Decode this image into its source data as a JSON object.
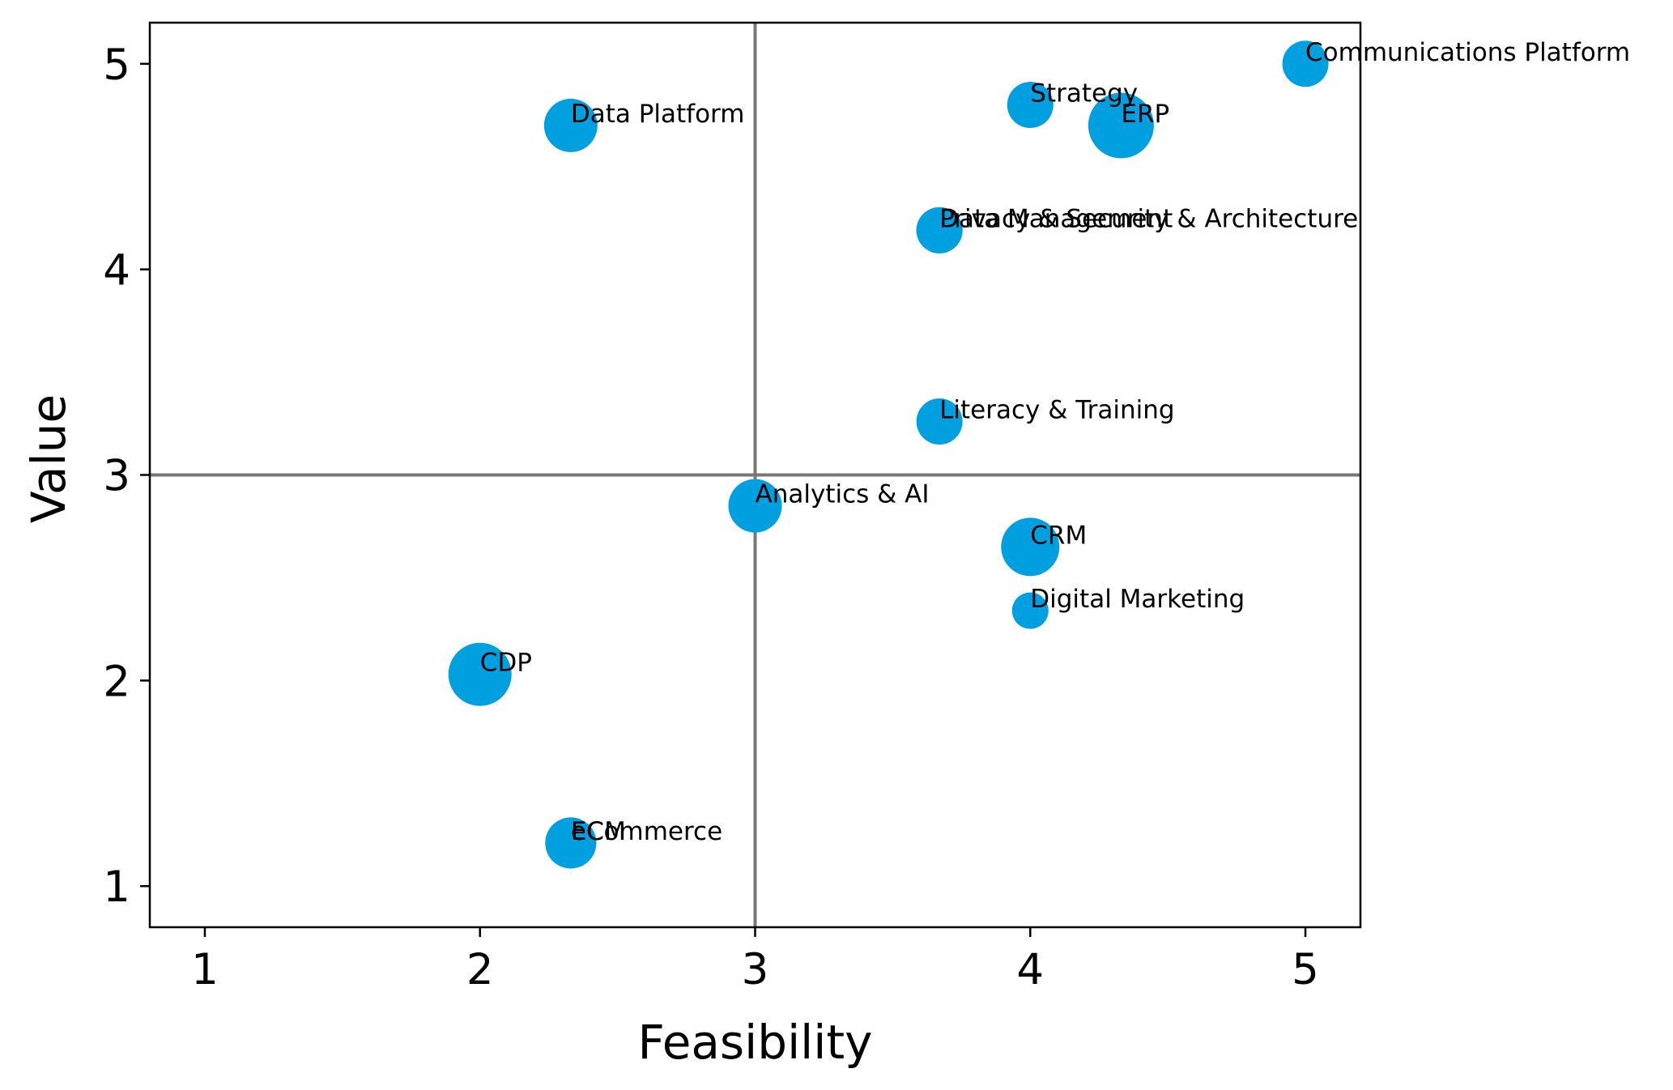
{
  "chart_data": {
    "type": "scatter",
    "xlabel": "Feasibility",
    "ylabel": "Value",
    "xlim": [
      0.8,
      5.2
    ],
    "ylim": [
      0.8,
      5.2
    ],
    "xticks": [
      1,
      2,
      3,
      4,
      5
    ],
    "yticks": [
      1,
      2,
      3,
      4,
      5
    ],
    "quadrant_lines": {
      "x": 3,
      "y": 3
    },
    "grid": false,
    "marker_color": "#00a0e0",
    "quadrant_line_color": "#777777",
    "points": [
      {
        "label": "Communications Platform",
        "x": 5.0,
        "y": 5.0,
        "size": 0.95
      },
      {
        "label": "Strategy",
        "x": 4.0,
        "y": 4.8,
        "size": 0.95
      },
      {
        "label": "ERP",
        "x": 4.33,
        "y": 4.7,
        "size": 1.35
      },
      {
        "label": "Data Platform",
        "x": 2.33,
        "y": 4.7,
        "size": 1.1
      },
      {
        "label": "Data Management",
        "x": 3.67,
        "y": 4.19,
        "size": 0.95
      },
      {
        "label": "Privacy & Security & Architecture",
        "x": 3.67,
        "y": 4.19,
        "size": 0.95
      },
      {
        "label": "Literacy & Training",
        "x": 3.67,
        "y": 3.26,
        "size": 0.95
      },
      {
        "label": "Analytics & AI",
        "x": 3.0,
        "y": 2.85,
        "size": 1.1
      },
      {
        "label": "CRM",
        "x": 4.0,
        "y": 2.65,
        "size": 1.2
      },
      {
        "label": "Digital Marketing",
        "x": 4.0,
        "y": 2.34,
        "size": 0.75
      },
      {
        "label": "CDP",
        "x": 2.0,
        "y": 2.03,
        "size": 1.3
      },
      {
        "label": "ECM",
        "x": 2.33,
        "y": 1.21,
        "size": 1.05
      },
      {
        "label": "eCommerce",
        "x": 2.33,
        "y": 1.21,
        "size": 1.05
      }
    ]
  }
}
